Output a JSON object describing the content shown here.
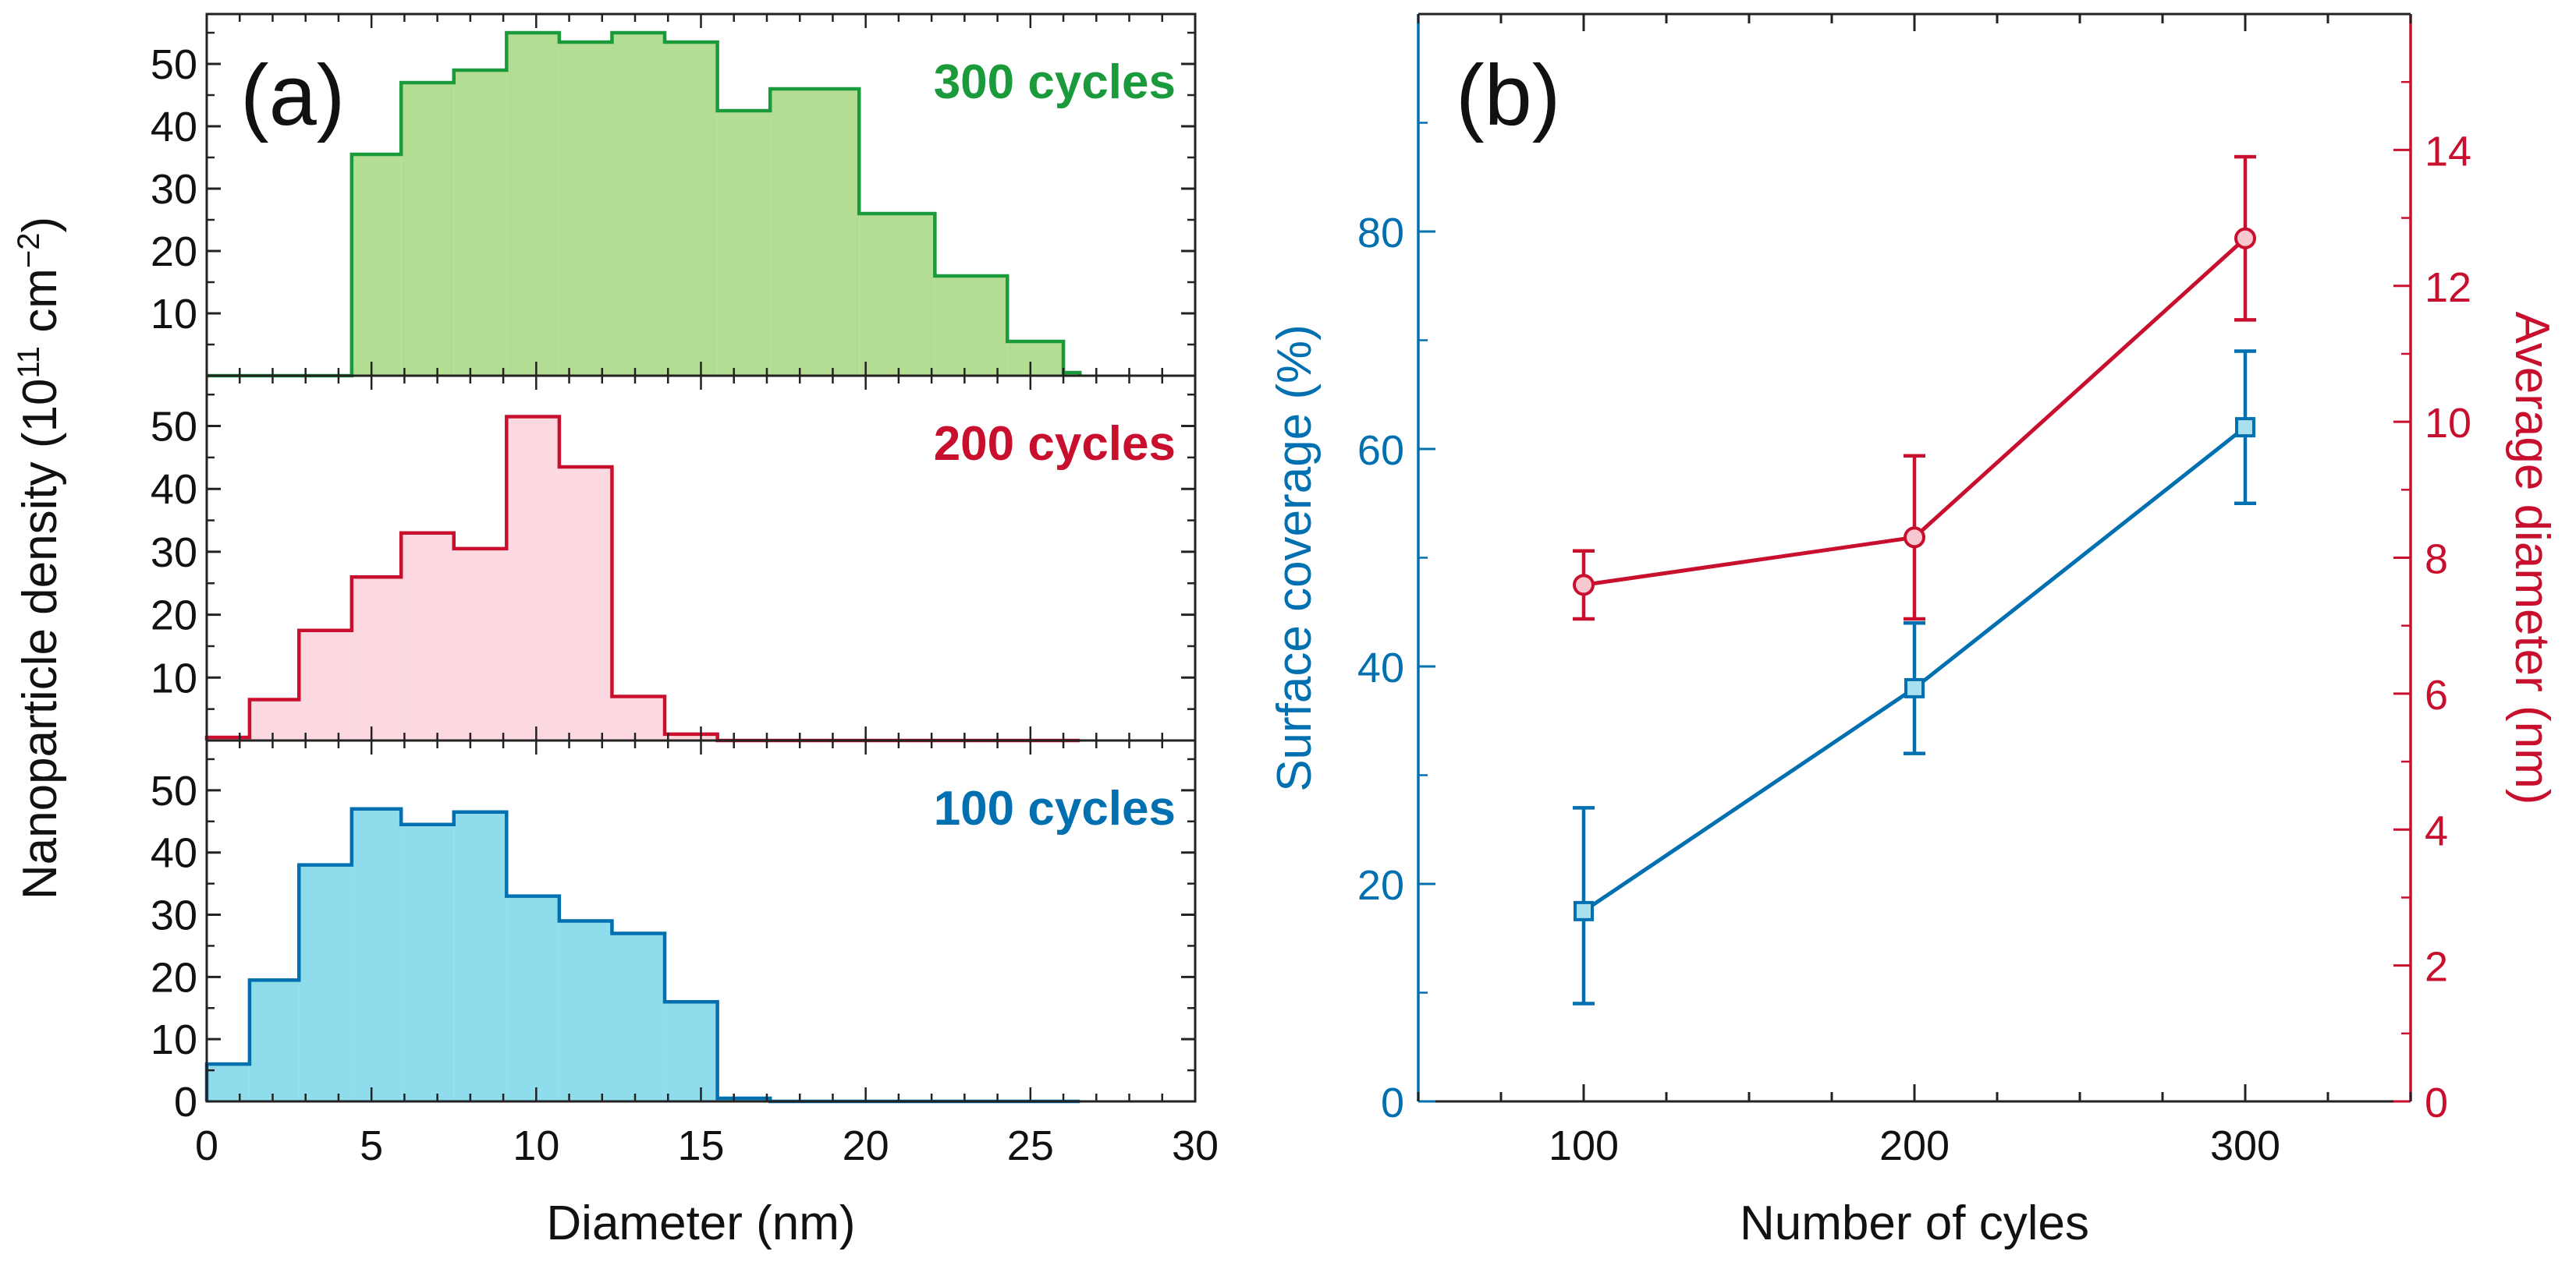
{
  "chart_data": [
    {
      "type": "histogram",
      "panel_label": "(a)",
      "xlabel": "Diameter (nm)",
      "ylabel": "Nanoparticle density (10¹¹ cm⁻²)",
      "ylabel_parts": {
        "pre": "Nanoparticle density (10",
        "sup1": "11",
        "mid": " cm",
        "sup2": "−2",
        "post": ")"
      },
      "xlim": [
        0,
        30
      ],
      "x_ticks": [
        "0",
        "5",
        "10",
        "15",
        "20",
        "25",
        "30"
      ],
      "bin_edges": [
        0,
        1.3,
        2.8,
        4.4,
        5.9,
        7.5,
        9.1,
        10.7,
        12.3,
        13.9,
        15.5,
        17.1,
        19.8,
        22.1,
        24.3,
        26.0,
        26.5
      ],
      "subplots": [
        {
          "label": "300 cycles",
          "color": "#1a9a3a",
          "fill": "#b4dd94",
          "ylim": [
            0,
            58
          ],
          "y_ticks": [
            "10",
            "20",
            "30",
            "40",
            "50"
          ],
          "values": [
            0,
            0,
            0,
            35.5,
            47,
            49,
            55,
            53.5,
            55,
            53.5,
            42.5,
            46,
            26,
            16,
            5.5,
            0.5
          ]
        },
        {
          "label": "200 cycles",
          "color": "#c8102e",
          "fill": "#fcd8e0",
          "ylim": [
            0,
            58
          ],
          "y_ticks": [
            "10",
            "20",
            "30",
            "40",
            "50"
          ],
          "values": [
            0.5,
            6.5,
            17.5,
            26,
            33,
            30.5,
            51.5,
            43.5,
            7,
            1,
            0,
            0,
            0,
            0,
            0,
            0
          ]
        },
        {
          "label": "100 cycles",
          "color": "#0070b0",
          "fill": "#8fdcec",
          "ylim": [
            0,
            58
          ],
          "y_ticks": [
            "0",
            "10",
            "20",
            "30",
            "40",
            "50"
          ],
          "values": [
            6,
            19.5,
            38,
            47,
            44.5,
            46.5,
            33,
            29,
            27,
            16,
            0.5,
            0,
            0,
            0,
            0,
            0
          ]
        }
      ]
    },
    {
      "type": "line",
      "panel_label": "(b)",
      "xlabel": "Number of cyles",
      "x": [
        100,
        200,
        300
      ],
      "xlim": [
        50,
        350
      ],
      "x_ticks": [
        "100",
        "200",
        "300"
      ],
      "series": [
        {
          "name": "Surface coverage (%)",
          "axis": "left",
          "color": "#0070b0",
          "marker": "square",
          "values": [
            17.5,
            38,
            62
          ],
          "error_low": [
            9,
            32,
            55
          ],
          "error_high": [
            27,
            44,
            69
          ]
        },
        {
          "name": "Average diameter (nm)",
          "axis": "right",
          "color": "#c8102e",
          "marker": "circle",
          "values": [
            7.6,
            8.3,
            12.7
          ],
          "error_low": [
            7.1,
            7.1,
            11.5
          ],
          "error_high": [
            8.1,
            9.5,
            13.9
          ]
        }
      ],
      "left_axis": {
        "label": "Surface coverage (%)",
        "color": "#0070b0",
        "ylim": [
          0,
          100
        ],
        "ticks": [
          "0",
          "20",
          "40",
          "60",
          "80"
        ]
      },
      "right_axis": {
        "label": "Average diameter (nm)",
        "color": "#c8102e",
        "ylim": [
          0,
          16
        ],
        "ticks": [
          "0",
          "2",
          "4",
          "6",
          "8",
          "10",
          "12",
          "14"
        ]
      }
    }
  ]
}
